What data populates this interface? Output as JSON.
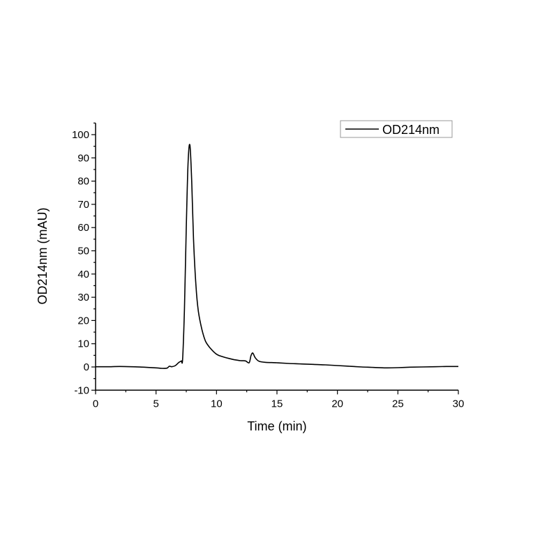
{
  "chart_data": {
    "type": "line",
    "title": "",
    "xlabel": "Time (min)",
    "ylabel": "OD214nm (mAU)",
    "xlim": [
      0,
      30
    ],
    "ylim": [
      -10,
      105
    ],
    "xticks": [
      0,
      5,
      10,
      15,
      20,
      25,
      30
    ],
    "yticks": [
      -10,
      0,
      10,
      20,
      30,
      40,
      50,
      60,
      70,
      80,
      90,
      100
    ],
    "grid": false,
    "legend_position": "upper right",
    "series": [
      {
        "name": "OD214nm",
        "color": "#000000",
        "x": [
          0,
          1,
          2,
          3,
          4,
          5,
          5.5,
          5.9,
          6.1,
          6.3,
          6.6,
          6.9,
          7.0,
          7.1,
          7.2,
          7.35,
          7.5,
          7.65,
          7.8,
          7.95,
          8.1,
          8.3,
          8.5,
          8.8,
          9.1,
          9.5,
          10.0,
          10.5,
          11.0,
          11.5,
          12.0,
          12.4,
          12.7,
          12.85,
          13.0,
          13.2,
          13.5,
          14.0,
          15,
          16,
          17,
          18,
          19,
          20,
          21,
          22,
          23,
          24,
          25,
          26,
          27,
          28,
          29,
          30
        ],
        "values": [
          0.1,
          0.1,
          0.2,
          0.1,
          -0.1,
          -0.4,
          -0.6,
          -0.5,
          0.3,
          0.1,
          0.6,
          2.0,
          2.3,
          2.6,
          3.5,
          25,
          60,
          88,
          95.5,
          80,
          55,
          35,
          24,
          16,
          11,
          8,
          5.5,
          4.4,
          3.7,
          3.1,
          2.7,
          2.6,
          1.8,
          4.8,
          6.0,
          4.0,
          2.5,
          2.0,
          1.8,
          1.5,
          1.3,
          1.1,
          0.9,
          0.6,
          0.3,
          0.0,
          -0.2,
          -0.4,
          -0.3,
          -0.1,
          0.0,
          0.1,
          0.2,
          0.2
        ]
      }
    ],
    "peaks": [
      {
        "time_min": 7.8,
        "height_mAU": 95.5
      },
      {
        "time_min": 13.0,
        "height_mAU": 6.0
      }
    ]
  },
  "legend": {
    "label": "OD214nm"
  },
  "axes": {
    "x_title": "Time (min)",
    "y_title": "OD214nm (mAU)"
  }
}
